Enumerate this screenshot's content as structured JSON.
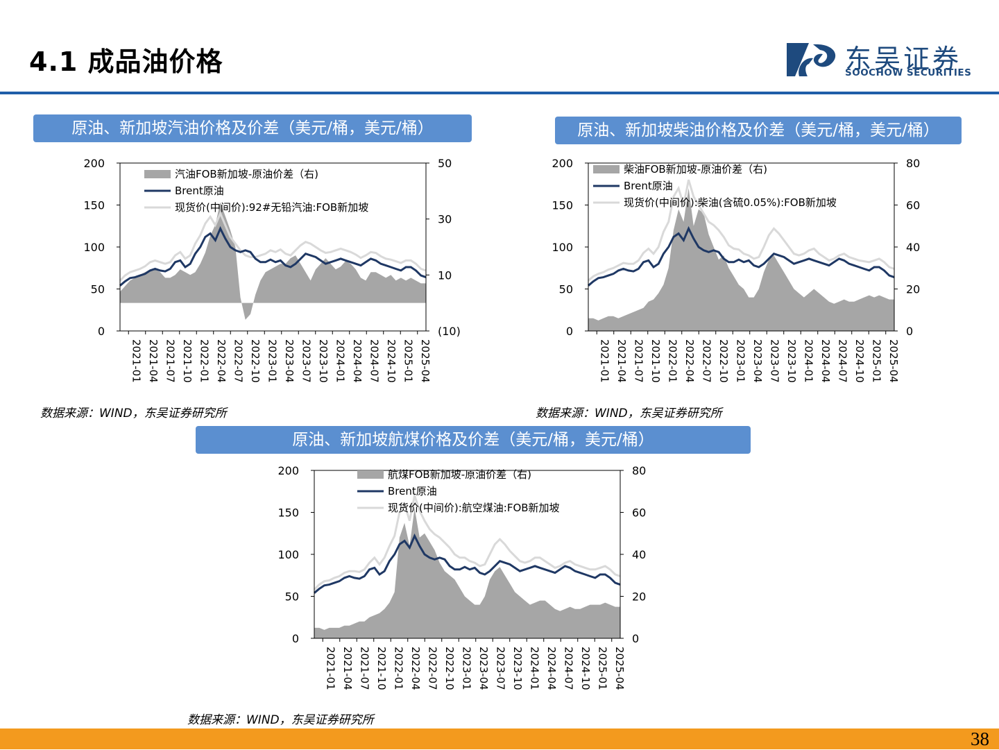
{
  "page": {
    "title": "4.1 成品油价格",
    "page_number": "38"
  },
  "brand": {
    "name_cn": "东吴证券",
    "name_en": "SOOCHOW SECURITIES",
    "color": "#1e4a7e"
  },
  "colors": {
    "accent": "#1f5ea8",
    "title_bar": "#5b8fd0",
    "footer": "#f39a1e",
    "spread": "#a6a6a6",
    "brent": "#1f3864",
    "product": "#d9d9d9",
    "negative": "#ff0000"
  },
  "charts": [
    {
      "title": "原油、新加坡汽油价格及价差（美元/桶，美元/桶）",
      "source": "数据来源：WIND，东吴证券研究所",
      "legend": [
        "汽油FOB新加坡-原油价差（右)",
        "Brent原油",
        "现货价(中间价):92#无铅汽油:FOB新加坡"
      ],
      "left_ticks": [
        "200",
        "150",
        "100",
        "50",
        "0"
      ],
      "right_ticks": [
        "50",
        "30",
        "10",
        "(10)"
      ]
    },
    {
      "title": "原油、新加坡柴油价格及价差（美元/桶，美元/桶）",
      "source": "数据来源：WIND，东吴证券研究所",
      "legend": [
        "柴油FOB新加坡-原油价差（右)",
        "Brent原油",
        "现货价(中间价):柴油(含硫0.05%):FOB新加坡"
      ],
      "left_ticks": [
        "200",
        "150",
        "100",
        "50",
        "0"
      ],
      "right_ticks": [
        "80",
        "60",
        "40",
        "20",
        "0"
      ]
    },
    {
      "title": "原油、新加坡航煤价格及价差（美元/桶，美元/桶）",
      "source": "数据来源：WIND，东吴证券研究所",
      "legend": [
        "航煤FOB新加坡-原油价差（右)",
        "Brent原油",
        "现货价(中间价):航空煤油:FOB新加坡"
      ],
      "left_ticks": [
        "200",
        "150",
        "100",
        "50",
        "0"
      ],
      "right_ticks": [
        "80",
        "60",
        "40",
        "20",
        "0"
      ]
    }
  ],
  "chart_data": [
    {
      "type": "line",
      "title": "原油、新加坡汽油价格及价差（美元/桶，美元/桶）",
      "x_labels": [
        "2021-01",
        "2021-04",
        "2021-07",
        "2021-10",
        "2022-01",
        "2022-04",
        "2022-07",
        "2022-10",
        "2023-01",
        "2023-04",
        "2023-07",
        "2023-10",
        "2024-01",
        "2024-04",
        "2024-07",
        "2024-10",
        "2025-01",
        "2025-04"
      ],
      "ylim": [
        0,
        200
      ],
      "y2lim": [
        -10,
        50
      ],
      "series": [
        {
          "name": "汽油FOB新加坡-原油价差（右)",
          "axis": "right",
          "kind": "area",
          "values": [
            4,
            6,
            8,
            9,
            10,
            11,
            12,
            12,
            11,
            9,
            9,
            10,
            12,
            11,
            10,
            11,
            14,
            18,
            24,
            28,
            36,
            31,
            26,
            20,
            2,
            -6,
            -4,
            3,
            8,
            11,
            12,
            13,
            14,
            14,
            16,
            17,
            14,
            11,
            8,
            12,
            14,
            16,
            14,
            12,
            13,
            15,
            14,
            12,
            9,
            8,
            11,
            11,
            10,
            9,
            10,
            8,
            9,
            8,
            9,
            8,
            7,
            7
          ]
        },
        {
          "name": "Brent原油",
          "axis": "left",
          "kind": "line",
          "values": [
            54,
            59,
            63,
            64,
            66,
            68,
            72,
            74,
            72,
            71,
            74,
            82,
            84,
            76,
            80,
            92,
            100,
            112,
            116,
            108,
            122,
            110,
            100,
            96,
            94,
            96,
            94,
            86,
            82,
            82,
            85,
            82,
            84,
            78,
            76,
            80,
            86,
            92,
            90,
            88,
            84,
            80,
            82,
            84,
            86,
            84,
            82,
            80,
            78,
            82,
            86,
            84,
            80,
            78,
            76,
            74,
            72,
            76,
            76,
            72,
            66,
            64
          ]
        },
        {
          "name": "现货价(中间价):92#无铅汽油:FOB新加坡",
          "axis": "left",
          "kind": "line",
          "values": [
            60,
            66,
            70,
            72,
            74,
            77,
            82,
            84,
            82,
            80,
            82,
            90,
            94,
            86,
            90,
            104,
            114,
            128,
            136,
            126,
            140,
            126,
            112,
            104,
            96,
            90,
            88,
            88,
            90,
            92,
            96,
            94,
            97,
            92,
            90,
            96,
            102,
            106,
            104,
            100,
            96,
            93,
            94,
            96,
            98,
            96,
            94,
            91,
            87,
            90,
            94,
            93,
            89,
            86,
            85,
            83,
            81,
            84,
            84,
            80,
            74,
            72
          ]
        }
      ]
    },
    {
      "type": "line",
      "title": "原油、新加坡柴油价格及价差（美元/桶，美元/桶）",
      "x_labels": [
        "2021-01",
        "2021-04",
        "2021-07",
        "2021-10",
        "2022-01",
        "2022-04",
        "2022-07",
        "2022-10",
        "2023-01",
        "2023-04",
        "2023-07",
        "2023-10",
        "2024-01",
        "2024-04",
        "2024-07",
        "2024-10",
        "2025-01",
        "2025-04"
      ],
      "ylim": [
        0,
        200
      ],
      "y2lim": [
        0,
        80
      ],
      "series": [
        {
          "name": "柴油FOB新加坡-原油价差（右)",
          "axis": "right",
          "kind": "area",
          "values": [
            6,
            6,
            5,
            6,
            7,
            7,
            6,
            7,
            8,
            9,
            10,
            11,
            14,
            15,
            18,
            22,
            30,
            48,
            58,
            52,
            68,
            50,
            58,
            56,
            46,
            40,
            34,
            36,
            30,
            26,
            22,
            20,
            16,
            16,
            20,
            28,
            34,
            36,
            32,
            28,
            24,
            20,
            18,
            16,
            18,
            20,
            18,
            16,
            14,
            13,
            14,
            15,
            14,
            14,
            15,
            16,
            17,
            16,
            17,
            16,
            15,
            15
          ]
        },
        {
          "name": "Brent原油",
          "axis": "left",
          "kind": "line",
          "values": [
            54,
            59,
            63,
            64,
            66,
            68,
            72,
            74,
            72,
            71,
            74,
            82,
            84,
            76,
            80,
            92,
            100,
            112,
            116,
            108,
            122,
            110,
            100,
            96,
            94,
            96,
            94,
            86,
            82,
            82,
            85,
            82,
            84,
            78,
            76,
            80,
            86,
            92,
            90,
            88,
            84,
            80,
            82,
            84,
            86,
            84,
            82,
            80,
            78,
            82,
            86,
            84,
            80,
            78,
            76,
            74,
            72,
            76,
            76,
            72,
            66,
            64
          ]
        },
        {
          "name": "现货价(中间价):柴油(含硫0.05%):FOB新加坡",
          "axis": "left",
          "kind": "line",
          "values": [
            60,
            65,
            68,
            70,
            73,
            75,
            78,
            81,
            80,
            80,
            84,
            93,
            98,
            92,
            100,
            118,
            130,
            160,
            170,
            150,
            180,
            160,
            150,
            140,
            130,
            126,
            120,
            112,
            102,
            98,
            97,
            92,
            90,
            86,
            88,
            100,
            114,
            122,
            116,
            108,
            100,
            92,
            90,
            92,
            96,
            98,
            92,
            88,
            84,
            86,
            90,
            92,
            88,
            86,
            84,
            83,
            82,
            84,
            86,
            82,
            76,
            74
          ]
        }
      ]
    },
    {
      "type": "line",
      "title": "原油、新加坡航煤价格及价差（美元/桶，美元/桶）",
      "x_labels": [
        "2021-01",
        "2021-04",
        "2021-07",
        "2021-10",
        "2022-01",
        "2022-04",
        "2022-07",
        "2022-10",
        "2023-01",
        "2023-04",
        "2023-07",
        "2023-10",
        "2024-01",
        "2024-04",
        "2024-07",
        "2024-10",
        "2025-01",
        "2025-04"
      ],
      "ylim": [
        0,
        200
      ],
      "y2lim": [
        0,
        80
      ],
      "series": [
        {
          "name": "航煤FOB新加坡-原油价差（右)",
          "axis": "right",
          "kind": "area",
          "values": [
            5,
            5,
            4,
            5,
            5,
            5,
            6,
            6,
            7,
            8,
            8,
            10,
            11,
            12,
            14,
            17,
            22,
            48,
            55,
            44,
            62,
            48,
            50,
            46,
            42,
            36,
            32,
            30,
            28,
            24,
            20,
            18,
            16,
            16,
            20,
            28,
            32,
            34,
            30,
            26,
            22,
            20,
            18,
            16,
            17,
            18,
            18,
            16,
            14,
            13,
            14,
            15,
            14,
            14,
            15,
            16,
            16,
            16,
            17,
            16,
            15,
            15
          ]
        },
        {
          "name": "Brent原油",
          "axis": "left",
          "kind": "line",
          "values": [
            54,
            59,
            63,
            64,
            66,
            68,
            72,
            74,
            72,
            71,
            74,
            82,
            84,
            76,
            80,
            92,
            100,
            112,
            116,
            108,
            122,
            110,
            100,
            96,
            94,
            96,
            94,
            86,
            82,
            82,
            85,
            82,
            84,
            78,
            76,
            80,
            86,
            92,
            90,
            88,
            84,
            80,
            82,
            84,
            86,
            84,
            82,
            80,
            78,
            82,
            86,
            84,
            80,
            78,
            76,
            74,
            72,
            76,
            76,
            72,
            66,
            64
          ]
        },
        {
          "name": "现货价(中间价):航空煤油:FOB新加坡",
          "axis": "left",
          "kind": "line",
          "values": [
            58,
            64,
            68,
            69,
            72,
            74,
            78,
            80,
            80,
            79,
            82,
            90,
            96,
            88,
            96,
            110,
            122,
            150,
            160,
            140,
            170,
            152,
            140,
            130,
            124,
            120,
            114,
            108,
            100,
            96,
            96,
            92,
            90,
            86,
            88,
            100,
            112,
            118,
            112,
            104,
            98,
            92,
            90,
            92,
            96,
            96,
            92,
            88,
            84,
            86,
            90,
            92,
            88,
            86,
            84,
            82,
            82,
            84,
            86,
            82,
            76,
            74
          ]
        }
      ]
    }
  ]
}
